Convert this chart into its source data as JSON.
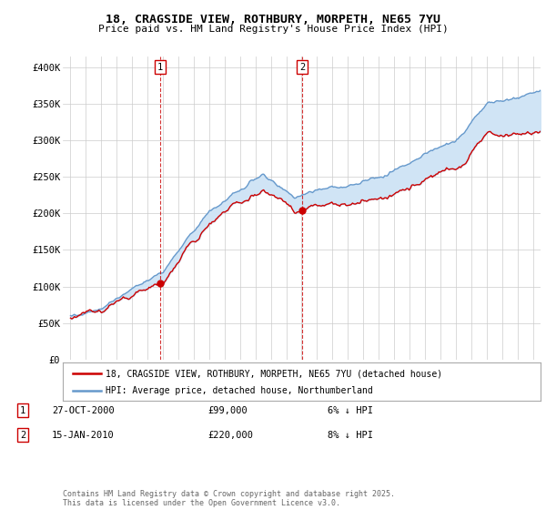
{
  "title_line1": "18, CRAGSIDE VIEW, ROTHBURY, MORPETH, NE65 7YU",
  "title_line2": "Price paid vs. HM Land Registry's House Price Index (HPI)",
  "yticks": [
    0,
    50000,
    100000,
    150000,
    200000,
    250000,
    300000,
    350000,
    400000
  ],
  "ytick_labels": [
    "£0",
    "£50K",
    "£100K",
    "£150K",
    "£200K",
    "£250K",
    "£300K",
    "£350K",
    "£400K"
  ],
  "ylim": [
    0,
    415000
  ],
  "sale_color": "#cc0000",
  "hpi_color": "#6699cc",
  "hpi_fill_color": "#d0e4f5",
  "vline_color": "#cc0000",
  "grid_color": "#cccccc",
  "bg_color": "#ffffff",
  "legend_label_sale": "18, CRAGSIDE VIEW, ROTHBURY, MORPETH, NE65 7YU (detached house)",
  "legend_label_hpi": "HPI: Average price, detached house, Northumberland",
  "sale1_x": 2000.82,
  "sale1_y": 99000,
  "sale1_label": "1",
  "sale2_x": 2010.04,
  "sale2_y": 220000,
  "sale2_label": "2",
  "table_rows": [
    {
      "num": "1",
      "date": "27-OCT-2000",
      "price": "£99,000",
      "pct": "6% ↓ HPI"
    },
    {
      "num": "2",
      "date": "15-JAN-2010",
      "price": "£220,000",
      "pct": "8% ↓ HPI"
    }
  ],
  "footer": "Contains HM Land Registry data © Crown copyright and database right 2025.\nThis data is licensed under the Open Government Licence v3.0.",
  "xmin": 1994.5,
  "xmax": 2025.5
}
